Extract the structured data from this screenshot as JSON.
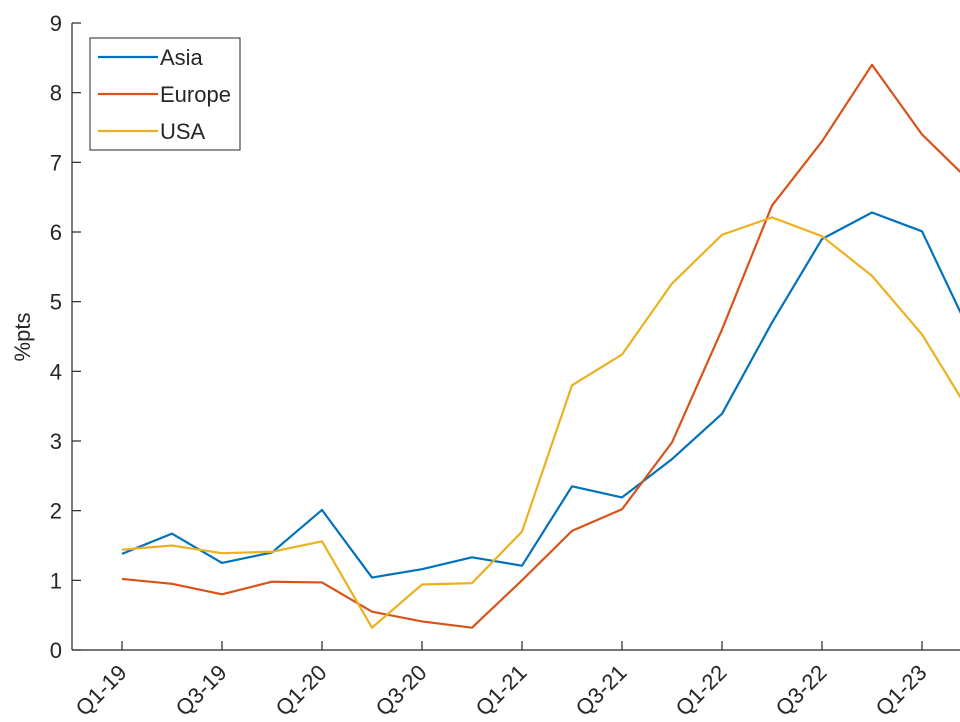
{
  "chart_data": {
    "type": "line",
    "y_label": "%pts",
    "categories": [
      "Q1-19",
      null,
      "Q3-19",
      null,
      "Q1-20",
      null,
      "Q3-20",
      null,
      "Q1-21",
      null,
      "Q3-21",
      null,
      "Q1-22",
      null,
      "Q3-22",
      null,
      "Q1-23",
      null
    ],
    "series": [
      {
        "name": "Asia",
        "color": "#0072bd",
        "values": [
          1.38,
          1.67,
          1.25,
          1.4,
          2.01,
          1.04,
          1.16,
          1.33,
          1.21,
          2.35,
          2.19,
          2.74,
          3.39,
          4.7,
          5.9,
          6.28,
          6.01,
          4.5
        ]
      },
      {
        "name": "Europe",
        "color": "#d95319",
        "values": [
          1.02,
          0.95,
          0.8,
          0.98,
          0.97,
          0.55,
          0.41,
          0.32,
          1.0,
          1.71,
          2.02,
          2.98,
          4.6,
          6.38,
          7.3,
          8.4,
          7.4,
          6.7
        ]
      },
      {
        "name": "USA",
        "color": "#edb120",
        "values": [
          1.44,
          1.5,
          1.39,
          1.41,
          1.56,
          0.32,
          0.94,
          0.96,
          1.7,
          3.8,
          4.24,
          5.26,
          5.96,
          6.21,
          5.94,
          5.37,
          4.53,
          3.36
        ]
      }
    ],
    "ylim": [
      0,
      9
    ],
    "yticks": [
      0,
      1,
      2,
      3,
      4,
      5,
      6,
      7,
      8,
      9
    ],
    "legend": "upper-left"
  }
}
